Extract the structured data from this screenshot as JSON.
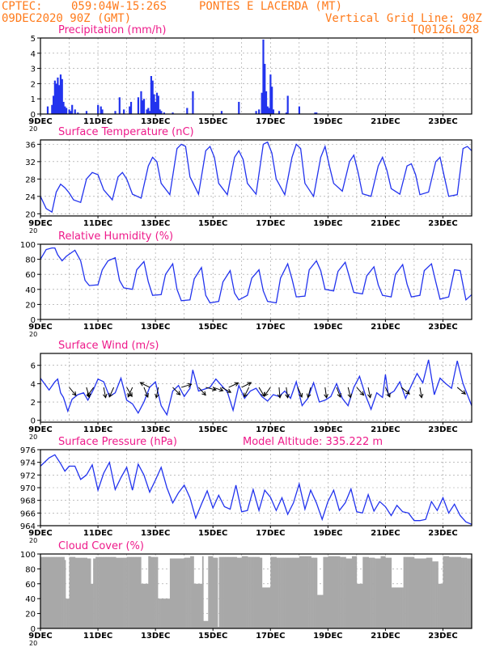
{
  "header": {
    "line1_left": "CPTEC:",
    "line1_loc": "059:04W-15:26S",
    "line1_site": "PONTES E LACERDA (MT)",
    "line2_date": "09DEC2020 90Z (GMT)",
    "line2_grid": "Vertical Grid Line: 90Z",
    "line3_code": "TQ0126L028"
  },
  "x_ticks": [
    "9DEC",
    "11DEC",
    "13DEC",
    "15DEC",
    "17DEC",
    "19DEC",
    "21DEC",
    "23DEC"
  ],
  "year_fragment": "20",
  "colors": {
    "series": "#2233ee",
    "title": "#ee1a8a",
    "header": "#ff7a1a",
    "cloud": "#a8a8a8",
    "grid": "#999999"
  },
  "chart_data": [
    {
      "id": "precip",
      "type": "bar",
      "title": "Precipitation (mm/h)",
      "ylim": [
        0,
        5
      ],
      "yticks": [
        0,
        1,
        2,
        3,
        4,
        5
      ],
      "x_unit": "days since 9DEC 00Z",
      "x": [
        0.25,
        0.4,
        0.45,
        0.5,
        0.55,
        0.6,
        0.65,
        0.7,
        0.75,
        0.8,
        0.85,
        0.9,
        1.0,
        1.05,
        1.1,
        1.2,
        1.3,
        1.6,
        2.0,
        2.1,
        2.15,
        2.6,
        2.75,
        2.9,
        3.1,
        3.15,
        3.4,
        3.5,
        3.55,
        3.6,
        3.7,
        3.75,
        3.8,
        3.85,
        3.9,
        3.95,
        4.0,
        4.05,
        4.1,
        4.15,
        4.2,
        4.3,
        4.6,
        5.1,
        5.3,
        6.3,
        6.9,
        7.5,
        7.6,
        7.7,
        7.75,
        7.8,
        7.85,
        7.9,
        7.95,
        8.0,
        8.05,
        8.1,
        8.3,
        8.55,
        8.6,
        9.0,
        9.55,
        9.6
      ],
      "values": [
        0.5,
        0.6,
        1.2,
        2.2,
        2.0,
        2.4,
        1.9,
        2.6,
        2.3,
        0.8,
        0.5,
        0.4,
        0.3,
        0.2,
        0.6,
        0.3,
        0.1,
        0.2,
        0.6,
        0.5,
        0.3,
        0.2,
        1.1,
        0.3,
        0.5,
        0.8,
        1.1,
        1.5,
        0.9,
        1.0,
        0.3,
        0.4,
        0.2,
        2.5,
        2.2,
        1.3,
        0.8,
        1.4,
        1.2,
        0.3,
        0.2,
        0.1,
        0.1,
        0.4,
        1.5,
        0.2,
        0.8,
        0.2,
        0.3,
        1.4,
        4.9,
        3.3,
        1.5,
        0.5,
        0.4,
        2.6,
        1.8,
        0.3,
        0.2,
        0.1,
        1.2,
        0.5,
        0.1,
        0.1
      ]
    },
    {
      "id": "temp",
      "type": "line",
      "title": "Surface Temperature (nC)",
      "ylim": [
        19.5,
        37
      ],
      "yticks": [
        20,
        24,
        28,
        32,
        36
      ],
      "x": [
        0,
        0.2,
        0.4,
        0.55,
        0.7,
        0.85,
        1.0,
        1.15,
        1.4,
        1.6,
        1.8,
        2.0,
        2.2,
        2.5,
        2.7,
        2.85,
        3.0,
        3.2,
        3.5,
        3.75,
        3.9,
        4.05,
        4.2,
        4.5,
        4.75,
        4.9,
        5.05,
        5.2,
        5.5,
        5.75,
        5.9,
        6.05,
        6.2,
        6.5,
        6.75,
        6.9,
        7.05,
        7.2,
        7.5,
        7.75,
        7.9,
        8.05,
        8.2,
        8.5,
        8.75,
        8.9,
        9.05,
        9.2,
        9.5,
        9.75,
        9.9,
        10.05,
        10.2,
        10.5,
        10.75,
        10.9,
        11.05,
        11.2,
        11.5,
        11.75,
        11.9,
        12.05,
        12.2,
        12.5,
        12.75,
        12.9,
        13.05,
        13.2,
        13.5,
        13.75,
        13.9,
        14.05,
        14.2,
        14.5,
        14.7,
        14.85,
        15.0
      ],
      "values": [
        24,
        21.2,
        20.4,
        25,
        26.8,
        26,
        24.8,
        23.2,
        22.6,
        28,
        29.5,
        29,
        25.5,
        23.2,
        28.5,
        29.5,
        28,
        24.5,
        23.6,
        31,
        33,
        32,
        27,
        24.4,
        35,
        36,
        35.5,
        28.5,
        24.5,
        34.5,
        35.5,
        33,
        27,
        24.4,
        33,
        34.5,
        32.5,
        27,
        24.5,
        36,
        36.5,
        34,
        28,
        24.4,
        33,
        36,
        35,
        27,
        24,
        33,
        35.5,
        31,
        27,
        25.2,
        32,
        33.5,
        29.5,
        24.6,
        24,
        31,
        33,
        30,
        25.8,
        24.5,
        31,
        31.5,
        29,
        24.4,
        25,
        32,
        33,
        28.5,
        24,
        24.4,
        35,
        35.5,
        34.5
      ]
    },
    {
      "id": "rh",
      "type": "line",
      "title": "Relative Humidity (%)",
      "ylim": [
        0,
        100
      ],
      "yticks": [
        0,
        20,
        40,
        60,
        80,
        100
      ],
      "x": [
        0,
        0.2,
        0.4,
        0.5,
        0.6,
        0.75,
        0.9,
        1.2,
        1.4,
        1.55,
        1.7,
        2.0,
        2.15,
        2.35,
        2.6,
        2.75,
        2.9,
        3.2,
        3.35,
        3.6,
        3.75,
        3.9,
        4.2,
        4.35,
        4.6,
        4.75,
        4.9,
        5.2,
        5.35,
        5.6,
        5.75,
        5.9,
        6.2,
        6.35,
        6.6,
        6.75,
        6.9,
        7.2,
        7.35,
        7.6,
        7.75,
        7.9,
        8.2,
        8.35,
        8.6,
        8.75,
        8.9,
        9.2,
        9.35,
        9.6,
        9.75,
        9.9,
        10.2,
        10.35,
        10.6,
        10.75,
        10.9,
        11.2,
        11.35,
        11.6,
        11.75,
        11.9,
        12.2,
        12.35,
        12.6,
        12.75,
        12.9,
        13.2,
        13.35,
        13.6,
        13.75,
        13.9,
        14.2,
        14.4,
        14.6,
        14.8,
        15.0
      ],
      "values": [
        80,
        93,
        95,
        95,
        86,
        78,
        84,
        92,
        78,
        52,
        45,
        46,
        66,
        78,
        82,
        52,
        42,
        40,
        66,
        77,
        50,
        32,
        33,
        60,
        74,
        40,
        25,
        26,
        54,
        69,
        32,
        22,
        24,
        50,
        65,
        35,
        26,
        32,
        55,
        66,
        38,
        24,
        22,
        55,
        74,
        54,
        30,
        31,
        66,
        78,
        65,
        40,
        38,
        64,
        76,
        56,
        36,
        34,
        58,
        70,
        46,
        32,
        30,
        60,
        73,
        47,
        30,
        32,
        65,
        74,
        50,
        27,
        30,
        66,
        65,
        26,
        33
      ]
    },
    {
      "id": "wind",
      "type": "line",
      "title": "Surface Wind (m/s)",
      "ylim": [
        -0.2,
        7.3
      ],
      "yticks": [
        0,
        2,
        4,
        6
      ],
      "x": [
        0,
        0.3,
        0.5,
        0.6,
        0.7,
        0.8,
        0.95,
        1.1,
        1.3,
        1.5,
        1.65,
        1.85,
        2.0,
        2.2,
        2.4,
        2.6,
        2.8,
        3.0,
        3.2,
        3.4,
        3.6,
        3.8,
        4.0,
        4.2,
        4.4,
        4.6,
        4.8,
        5.0,
        5.2,
        5.3,
        5.5,
        5.7,
        5.9,
        6.1,
        6.3,
        6.5,
        6.7,
        6.9,
        7.1,
        7.3,
        7.5,
        7.7,
        7.9,
        8.1,
        8.3,
        8.5,
        8.7,
        8.9,
        9.1,
        9.3,
        9.5,
        9.7,
        9.9,
        10.1,
        10.3,
        10.5,
        10.7,
        10.9,
        11.1,
        11.3,
        11.5,
        11.7,
        11.9,
        12.0,
        12.1,
        12.3,
        12.5,
        12.7,
        12.9,
        13.1,
        13.3,
        13.5,
        13.7,
        13.9,
        14.1,
        14.3,
        14.5,
        14.7,
        15.0
      ],
      "values": [
        4.6,
        3.3,
        4.2,
        4.5,
        3.0,
        2.5,
        1.0,
        2.3,
        2.8,
        3.0,
        2.2,
        3.4,
        4.5,
        4.2,
        2.6,
        3.0,
        4.6,
        2.2,
        1.8,
        0.8,
        2.0,
        3.6,
        4.2,
        1.6,
        0.6,
        3.2,
        3.8,
        2.6,
        3.5,
        5.5,
        3.2,
        3.4,
        3.6,
        4.5,
        3.8,
        3.1,
        1.1,
        3.8,
        2.4,
        3.2,
        3.5,
        2.6,
        2.1,
        2.8,
        2.6,
        3.2,
        2.4,
        4.2,
        1.6,
        2.4,
        4.1,
        2.0,
        2.2,
        2.6,
        4.0,
        2.4,
        1.6,
        3.6,
        4.8,
        2.8,
        1.2,
        3.0,
        2.5,
        5.0,
        2.8,
        3.2,
        4.2,
        2.4,
        3.8,
        5.1,
        4.1,
        6.6,
        2.8,
        4.6,
        4.0,
        3.5,
        6.5,
        4.0,
        1.6
      ],
      "arrows": [
        {
          "x": 1.0,
          "dx": 1,
          "dy": 1.2
        },
        {
          "x": 1.6,
          "dx": 0.4,
          "dy": 1.4
        },
        {
          "x": 1.85,
          "dx": -0.8,
          "dy": 1.1
        },
        {
          "x": 2.2,
          "dx": 0.3,
          "dy": 1.6
        },
        {
          "x": 2.55,
          "dx": -0.5,
          "dy": 1.1
        },
        {
          "x": 3.0,
          "dx": 0.7,
          "dy": 1.2
        },
        {
          "x": 3.2,
          "dx": -0.5,
          "dy": 1.1
        },
        {
          "x": 3.6,
          "dx": 0.4,
          "dy": 1.0
        },
        {
          "x": 3.8,
          "dx": -0.8,
          "dy": -0.4
        },
        {
          "x": 4.1,
          "dx": -0.2,
          "dy": 1.0
        },
        {
          "x": 4.6,
          "dx": 0.8,
          "dy": 0.8
        },
        {
          "x": 4.9,
          "dx": 1.0,
          "dy": -0.3
        },
        {
          "x": 5.5,
          "dx": 0.9,
          "dy": 1.0
        },
        {
          "x": 5.75,
          "dx": 1.2,
          "dy": 0.3
        },
        {
          "x": 6.0,
          "dx": 1.2,
          "dy": 0.4
        },
        {
          "x": 6.3,
          "dx": 1.1,
          "dy": 0.6
        },
        {
          "x": 6.55,
          "dx": 1.3,
          "dy": -0.6
        },
        {
          "x": 7.0,
          "dx": 1.0,
          "dy": -0.5
        },
        {
          "x": 7.25,
          "dx": -0.5,
          "dy": 1.0
        },
        {
          "x": 7.6,
          "dx": 0.6,
          "dy": 1.0
        },
        {
          "x": 8.0,
          "dx": -0.7,
          "dy": 1.0
        },
        {
          "x": 8.3,
          "dx": 0.1,
          "dy": 1.2
        },
        {
          "x": 8.55,
          "dx": 0.2,
          "dy": 1.4
        },
        {
          "x": 8.95,
          "dx": 0.6,
          "dy": 1.4
        },
        {
          "x": 9.4,
          "dx": -0.3,
          "dy": 1.1
        },
        {
          "x": 9.9,
          "dx": 0.2,
          "dy": 1.4
        },
        {
          "x": 10.3,
          "dx": 0.4,
          "dy": 1.0
        },
        {
          "x": 10.7,
          "dx": 0.3,
          "dy": 1.2
        },
        {
          "x": 11.0,
          "dx": 0.8,
          "dy": 0.9
        },
        {
          "x": 11.4,
          "dx": 0.2,
          "dy": 1.0
        },
        {
          "x": 12.0,
          "dx": 0.5,
          "dy": 1.1
        },
        {
          "x": 12.55,
          "dx": 1.0,
          "dy": 0.8
        },
        {
          "x": 13.2,
          "dx": 0.2,
          "dy": 1.2
        },
        {
          "x": 14.5,
          "dx": 1.8,
          "dy": 1.5
        }
      ]
    },
    {
      "id": "pressure",
      "type": "line",
      "title": "Surface Pressure (hPa)",
      "subtitle": "Model Altitude: 335.222 m",
      "ylim": [
        964,
        976
      ],
      "yticks": [
        964,
        966,
        968,
        970,
        972,
        974,
        976
      ],
      "x": [
        0,
        0.3,
        0.5,
        0.7,
        0.85,
        1.0,
        1.2,
        1.4,
        1.6,
        1.8,
        2.0,
        2.2,
        2.4,
        2.6,
        2.8,
        3.0,
        3.2,
        3.4,
        3.6,
        3.8,
        4.0,
        4.2,
        4.4,
        4.6,
        4.8,
        5.0,
        5.2,
        5.4,
        5.6,
        5.8,
        6.0,
        6.2,
        6.4,
        6.6,
        6.8,
        7.0,
        7.2,
        7.4,
        7.6,
        7.8,
        8.0,
        8.2,
        8.4,
        8.6,
        8.8,
        9.0,
        9.2,
        9.4,
        9.6,
        9.8,
        10.0,
        10.2,
        10.4,
        10.6,
        10.8,
        11.0,
        11.2,
        11.4,
        11.6,
        11.8,
        12.0,
        12.2,
        12.4,
        12.6,
        12.8,
        13.0,
        13.2,
        13.4,
        13.6,
        13.8,
        14.0,
        14.2,
        14.4,
        14.6,
        14.8,
        15.0
      ],
      "values": [
        973.4,
        974.7,
        975.2,
        973.8,
        972.6,
        973.4,
        973.4,
        971.3,
        972.0,
        973.6,
        969.6,
        972.3,
        974.0,
        969.7,
        971.6,
        973.2,
        969.6,
        973.7,
        972.0,
        969.3,
        971.2,
        973.2,
        970.0,
        967.6,
        969.2,
        970.4,
        968.4,
        965.2,
        967.4,
        969.5,
        966.8,
        968.8,
        967.0,
        966.6,
        970.4,
        966.2,
        966.4,
        969.7,
        966.4,
        969.6,
        968.5,
        966.4,
        968.4,
        965.8,
        967.6,
        970.6,
        966.6,
        969.6,
        967.6,
        965.0,
        967.8,
        969.6,
        966.4,
        967.6,
        969.8,
        966.2,
        966.0,
        968.9,
        966.3,
        967.8,
        967.0,
        965.6,
        967.2,
        966.2,
        966.0,
        964.8,
        964.8,
        965.0,
        967.8,
        966.4,
        968.4,
        966.0,
        967.4,
        965.6,
        964.6,
        964.2
      ]
    },
    {
      "id": "cloud",
      "type": "area",
      "title": "Cloud Cover (%)",
      "ylim": [
        0,
        100
      ],
      "yticks": [
        0,
        20,
        40,
        60,
        80,
        100
      ],
      "x": [
        0,
        0.5,
        0.8,
        0.85,
        1.0,
        1.2,
        1.6,
        1.75,
        1.8,
        1.9,
        2.2,
        2.6,
        3.0,
        3.45,
        3.5,
        3.75,
        3.8,
        4.05,
        4.5,
        5.0,
        5.2,
        5.3,
        5.6,
        5.65,
        5.8,
        6.0,
        6.15,
        6.2,
        6.4,
        6.8,
        7.0,
        7.2,
        7.6,
        7.7,
        8.0,
        8.2,
        8.6,
        9.0,
        9.4,
        9.6,
        9.8,
        10.0,
        10.4,
        10.6,
        10.8,
        11.0,
        11.2,
        11.4,
        11.6,
        11.8,
        12.0,
        12.2,
        12.6,
        13.0,
        13.4,
        13.6,
        13.8,
        14.0,
        14.2,
        14.6,
        14.8,
        15.0
      ],
      "values": [
        96,
        96,
        92,
        40,
        96,
        95,
        94,
        60,
        94,
        96,
        96,
        95,
        96,
        96,
        60,
        97,
        96,
        40,
        94,
        95,
        97,
        60,
        97,
        10,
        97,
        95,
        2,
        96,
        96,
        95,
        97,
        96,
        95,
        55,
        96,
        95,
        95,
        97,
        95,
        45,
        96,
        97,
        96,
        94,
        97,
        60,
        96,
        95,
        94,
        97,
        95,
        55,
        96,
        94,
        95,
        90,
        60,
        97,
        96,
        95,
        94,
        97
      ]
    }
  ]
}
